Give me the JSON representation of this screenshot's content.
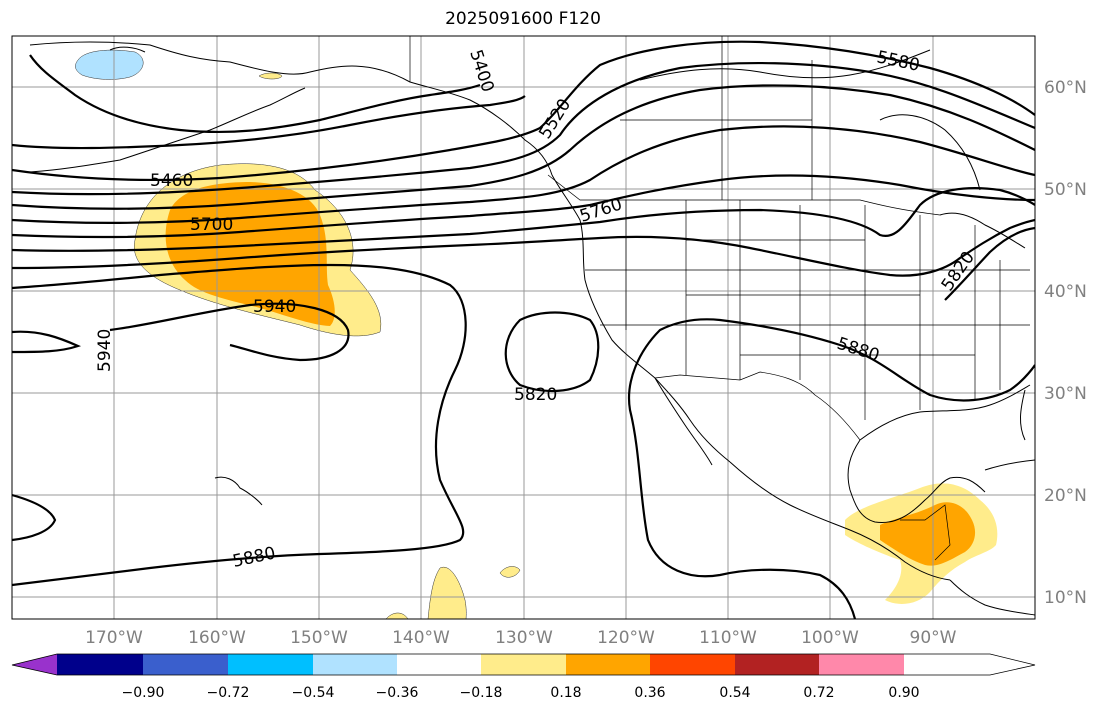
{
  "title": "2025091600 F120",
  "map": {
    "lat_labels": [
      "60°N",
      "50°N",
      "40°N",
      "30°N",
      "20°N",
      "10°N"
    ],
    "lon_labels": [
      "170°W",
      "160°W",
      "150°W",
      "140°W",
      "130°W",
      "120°W",
      "110°W",
      "100°W",
      "90°W"
    ],
    "contour_labels": [
      "5580",
      "5400",
      "5520",
      "5460",
      "5700",
      "5760",
      "5940",
      "5940",
      "5820",
      "5820",
      "5880",
      "5880"
    ],
    "colorbar": {
      "ticks": [
        "−0.90",
        "−0.72",
        "−0.54",
        "−0.36",
        "−0.18",
        "0.18",
        "0.36",
        "0.54",
        "0.72",
        "0.90"
      ],
      "colors": [
        "#9932cc",
        "#00008b",
        "#3a5fcd",
        "#00bfff",
        "#b0e2ff",
        "#ffffff",
        "#ffec8b",
        "#ffa500",
        "#ff4500",
        "#b22222",
        "#ff88aa"
      ]
    }
  }
}
